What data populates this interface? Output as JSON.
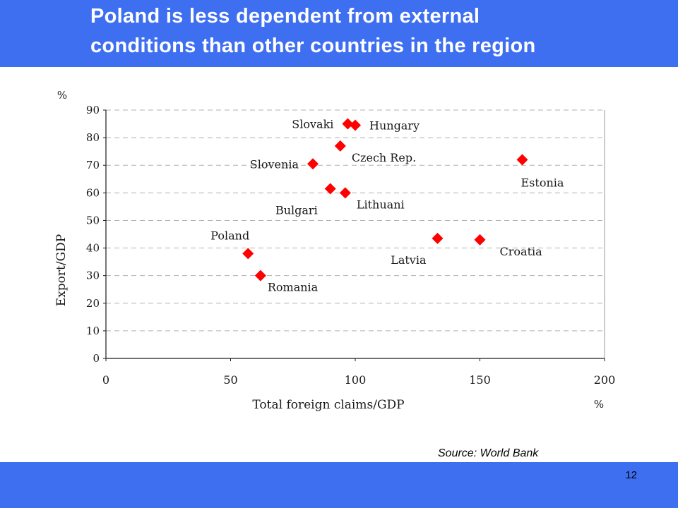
{
  "slide": {
    "title_line1": "Poland is less dependent from external",
    "title_line2": "conditions than other countries in the region",
    "source": "Source: World Bank",
    "page_number": "12"
  },
  "colors": {
    "banner": "#3f6ff1",
    "marker": "#ff0000",
    "grid": "#b0b0b0"
  },
  "chart_data": {
    "type": "scatter",
    "xlabel": "Total foreign claims/GDP",
    "ylabel": "Export/GDP",
    "x_unit": "%",
    "y_unit": "%",
    "xlim": [
      0,
      200
    ],
    "ylim": [
      0,
      90
    ],
    "xticks": [
      0,
      50,
      100,
      150,
      200
    ],
    "yticks": [
      0,
      10,
      20,
      30,
      40,
      50,
      60,
      70,
      80,
      90
    ],
    "grid": "horizontal dashed",
    "points": [
      {
        "label": "Slovaki",
        "x": 97,
        "y": 85,
        "label_side": "left"
      },
      {
        "label": "Hungary",
        "x": 100,
        "y": 84.5,
        "label_side": "right"
      },
      {
        "label": "Czech Rep.",
        "x": 94,
        "y": 77,
        "label_side": "below-right"
      },
      {
        "label": "Slovenia",
        "x": 83,
        "y": 70.5,
        "label_side": "left"
      },
      {
        "label": "Estonia",
        "x": 167,
        "y": 72,
        "label_side": "below"
      },
      {
        "label": "Bulgari",
        "x": 90,
        "y": 61.5,
        "label_side": "below-left"
      },
      {
        "label": "Lithuani",
        "x": 96,
        "y": 60,
        "label_side": "below-right"
      },
      {
        "label": "Latvia",
        "x": 133,
        "y": 43.5,
        "label_side": "below-left"
      },
      {
        "label": "Croatia",
        "x": 150,
        "y": 43,
        "label_side": "below-right"
      },
      {
        "label": "Poland",
        "x": 57,
        "y": 38,
        "label_side": "above-left"
      },
      {
        "label": "Romania",
        "x": 62,
        "y": 30,
        "label_side": "below-right"
      }
    ]
  }
}
